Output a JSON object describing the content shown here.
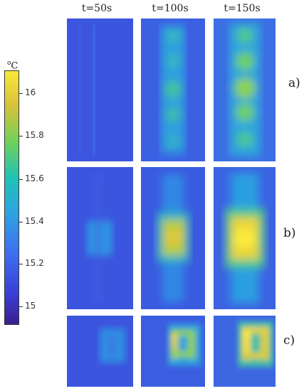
{
  "column_titles": [
    "t=50s",
    "t=100s",
    "t=150s"
  ],
  "row_labels": [
    "a)",
    "b)",
    "c)"
  ],
  "colorbar": {
    "unit_degree": "o",
    "unit_letter": "C",
    "ticks": [
      "16",
      "15.8",
      "15.6",
      "15.4",
      "15.2",
      "15"
    ]
  },
  "colors": {
    "background": "#3b55de",
    "mid": "#2ea5e0",
    "green": "#36c98a",
    "hot": "#f7e63a"
  }
}
